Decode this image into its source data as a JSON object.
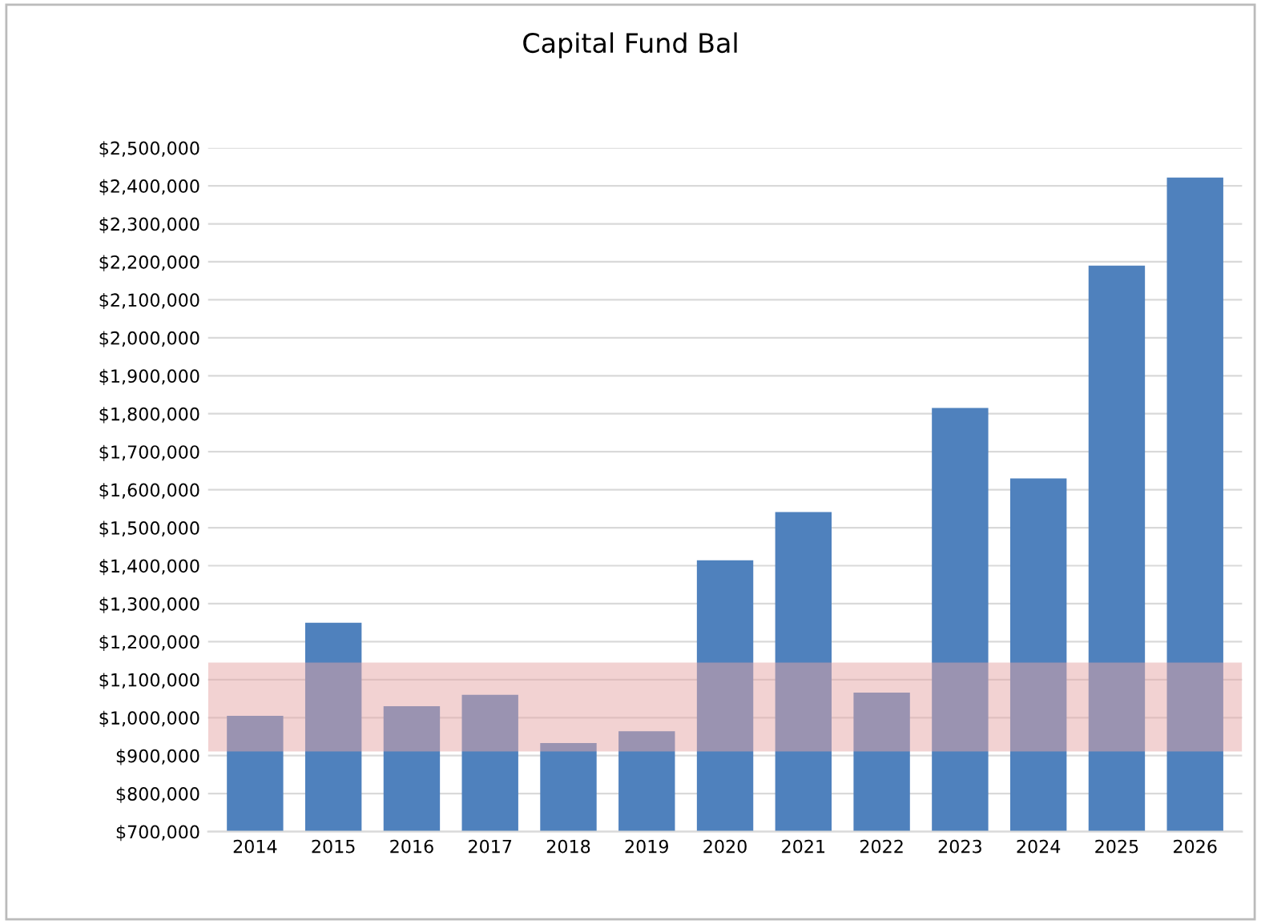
{
  "chart_data": {
    "type": "bar",
    "title": "Capital Fund Bal",
    "categories": [
      "2014",
      "2015",
      "2016",
      "2017",
      "2018",
      "2019",
      "2020",
      "2021",
      "2022",
      "2023",
      "2024",
      "2025",
      "2026"
    ],
    "values": [
      1005000,
      1250000,
      1030000,
      1060000,
      933000,
      964000,
      1414000,
      1541000,
      1066000,
      1815000,
      1630000,
      2190000,
      2422000
    ],
    "color": "#4f81bd",
    "ylim": [
      700000,
      2500000
    ],
    "yticks": [
      {
        "value": 700000,
        "label": "$700,000"
      },
      {
        "value": 800000,
        "label": "$800,000"
      },
      {
        "value": 900000,
        "label": "$900,000"
      },
      {
        "value": 1000000,
        "label": "$1,000,000"
      },
      {
        "value": 1100000,
        "label": "$1,100,000"
      },
      {
        "value": 1200000,
        "label": "$1,200,000"
      },
      {
        "value": 1300000,
        "label": "$1,300,000"
      },
      {
        "value": 1400000,
        "label": "$1,400,000"
      },
      {
        "value": 1500000,
        "label": "$1,500,000"
      },
      {
        "value": 1600000,
        "label": "$1,600,000"
      },
      {
        "value": 1700000,
        "label": "$1,700,000"
      },
      {
        "value": 1800000,
        "label": "$1,800,000"
      },
      {
        "value": 1900000,
        "label": "$1,900,000"
      },
      {
        "value": 2000000,
        "label": "$2,000,000"
      },
      {
        "value": 2100000,
        "label": "$2,100,000"
      },
      {
        "value": 2200000,
        "label": "$2,200,000"
      },
      {
        "value": 2300000,
        "label": "$2,300,000"
      },
      {
        "value": 2400000,
        "label": "$2,400,000"
      },
      {
        "value": 2500000,
        "label": "$2,500,000"
      }
    ],
    "grid": "y",
    "bands": [
      {
        "axis": "y",
        "from": 911000,
        "to": 1145000,
        "color": "#e6a6a6"
      }
    ]
  }
}
